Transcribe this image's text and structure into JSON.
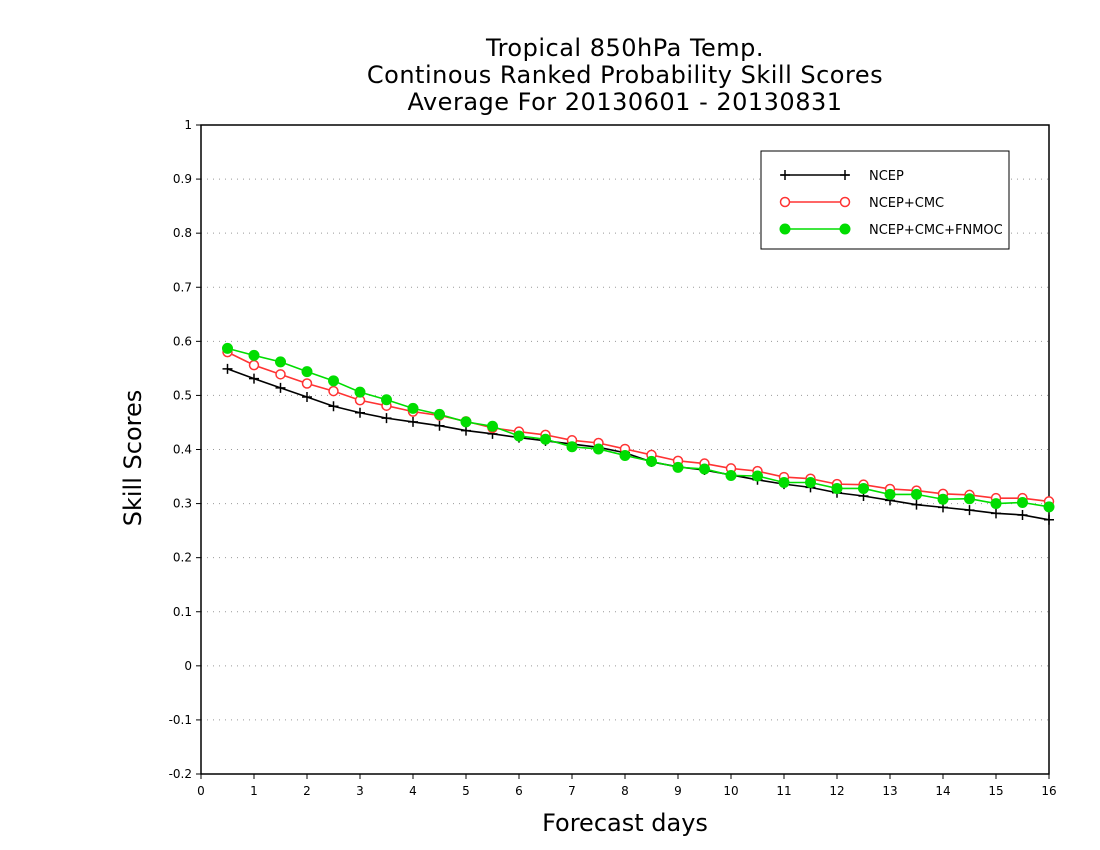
{
  "chart_data": {
    "type": "line",
    "title": [
      "Tropical 850hPa Temp.",
      "Continous Ranked Probability Skill Scores",
      "Average For 20130601 - 20130831"
    ],
    "xlabel": "Forecast days",
    "ylabel": "Skill Scores",
    "xlim": [
      0,
      16
    ],
    "ylim": [
      -0.2,
      1
    ],
    "xticks": [
      0,
      1,
      2,
      3,
      4,
      5,
      6,
      7,
      8,
      9,
      10,
      11,
      12,
      13,
      14,
      15,
      16
    ],
    "yticks": [
      -0.2,
      -0.1,
      0,
      0.1,
      0.2,
      0.3,
      0.4,
      0.5,
      0.6,
      0.7,
      0.8,
      0.9,
      1
    ],
    "ytick_labels": [
      "-0.2",
      "-0.1",
      "0",
      "0.1",
      "0.2",
      "0.3",
      "0.4",
      "0.5",
      "0.6",
      "0.7",
      "0.8",
      "0.9",
      "1"
    ],
    "grid": "horizontal dotted",
    "legend_position": "top-right",
    "x": [
      0.5,
      1,
      1.5,
      2,
      2.5,
      3,
      3.5,
      4,
      4.5,
      5,
      5.5,
      6,
      6.5,
      7,
      7.5,
      8,
      8.5,
      9,
      9.5,
      10,
      10.5,
      11,
      11.5,
      12,
      12.5,
      13,
      13.5,
      14,
      14.5,
      15,
      15.5,
      16
    ],
    "series": [
      {
        "name": "NCEP",
        "color": "#000000",
        "marker": "plus",
        "values": [
          0.549,
          0.531,
          0.514,
          0.497,
          0.48,
          0.468,
          0.458,
          0.451,
          0.444,
          0.435,
          0.429,
          0.422,
          0.416,
          0.41,
          0.404,
          0.394,
          0.377,
          0.368,
          0.362,
          0.353,
          0.344,
          0.336,
          0.33,
          0.32,
          0.314,
          0.306,
          0.298,
          0.293,
          0.288,
          0.282,
          0.279,
          0.27
        ]
      },
      {
        "name": "NCEP+CMC",
        "color": "#ff3333",
        "marker": "open-circle",
        "values": [
          0.58,
          0.556,
          0.539,
          0.522,
          0.508,
          0.491,
          0.481,
          0.47,
          0.463,
          0.452,
          0.44,
          0.433,
          0.427,
          0.417,
          0.412,
          0.401,
          0.39,
          0.379,
          0.374,
          0.365,
          0.36,
          0.349,
          0.346,
          0.336,
          0.335,
          0.327,
          0.324,
          0.318,
          0.316,
          0.31,
          0.31,
          0.304
        ]
      },
      {
        "name": "NCEP+CMC+FNMOC",
        "color": "#00dd00",
        "marker": "filled-circle",
        "values": [
          0.587,
          0.574,
          0.562,
          0.544,
          0.527,
          0.506,
          0.492,
          0.476,
          0.465,
          0.451,
          0.443,
          0.425,
          0.419,
          0.405,
          0.401,
          0.389,
          0.378,
          0.367,
          0.364,
          0.352,
          0.351,
          0.339,
          0.339,
          0.328,
          0.328,
          0.317,
          0.317,
          0.308,
          0.309,
          0.3,
          0.302,
          0.294
        ]
      }
    ]
  }
}
